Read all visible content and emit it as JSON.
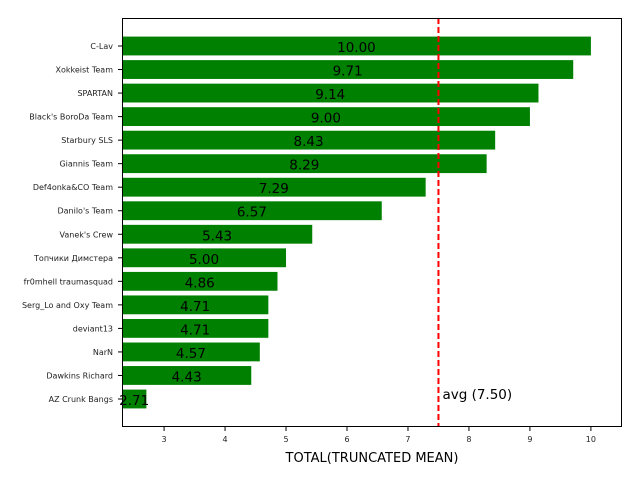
{
  "chart_data": {
    "type": "bar",
    "orientation": "horizontal",
    "categories": [
      "C-Lav",
      "Xokkeist Team",
      "SPARTAN",
      "Black's BoroDa Team",
      "Starbury SLS",
      "Giannis Team",
      "Def4onka&CO Team",
      "Danilo's Team",
      "Vanek's Crew",
      "Топчики Димстера",
      "fr0mhell traumasquad",
      "Serg_Lo and Oxy Team",
      "deviant13",
      "NarN",
      "Dawkins Richard",
      "AZ Crunk Bangs"
    ],
    "values": [
      10.0,
      9.71,
      9.14,
      9.0,
      8.43,
      8.29,
      7.29,
      6.57,
      5.43,
      5.0,
      4.86,
      4.71,
      4.71,
      4.57,
      4.43,
      2.71
    ],
    "data_labels": [
      "10.00",
      "9.71",
      "9.14",
      "9.00",
      "8.43",
      "8.29",
      "7.29",
      "6.57",
      "5.43",
      "5.00",
      "4.86",
      "4.71",
      "4.71",
      "4.57",
      "4.43",
      "2.71"
    ],
    "xlabel": "TOTAL(TRUNCATED MEAN)",
    "ylabel": "",
    "title": "",
    "xlim": [
      2.31,
      10.51
    ],
    "xticks": [
      "3",
      "4",
      "5",
      "6",
      "7",
      "8",
      "9",
      "10"
    ],
    "bar_color": "#008000",
    "reference_line": {
      "value": 7.5,
      "label": "avg (7.50)",
      "color": "#ff0000",
      "style": "dashed"
    },
    "grid": false,
    "legend": "none"
  }
}
